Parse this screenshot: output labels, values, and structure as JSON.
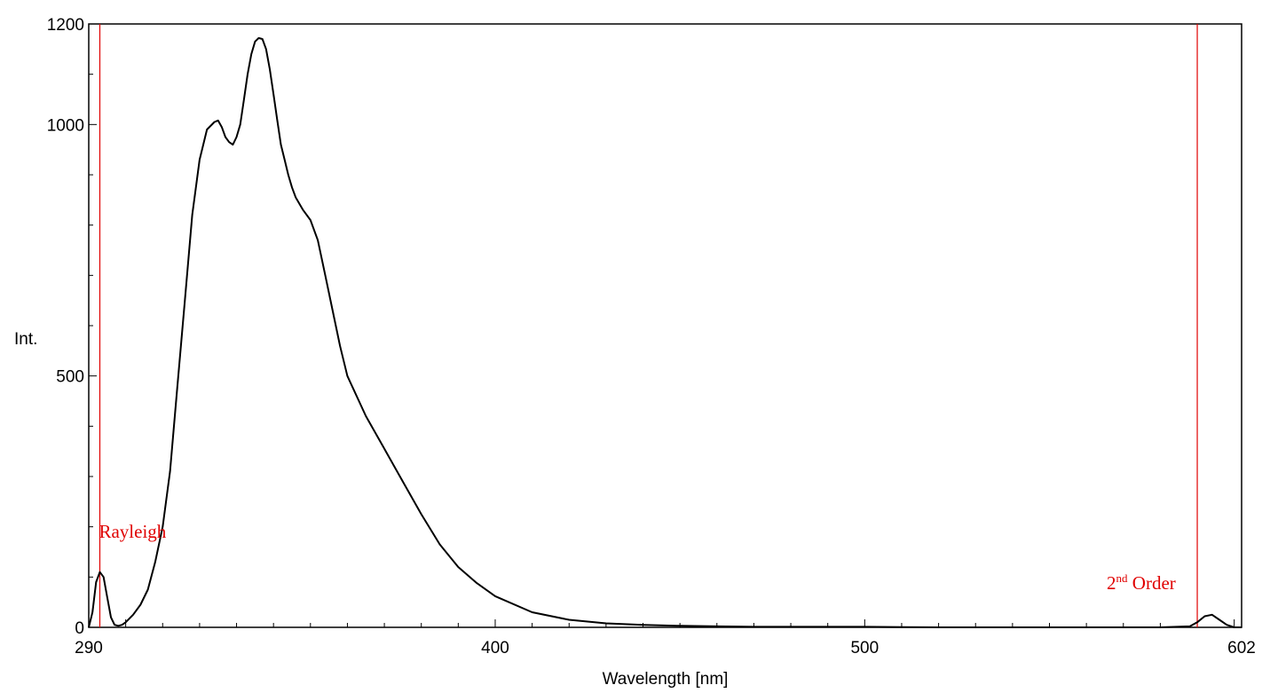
{
  "chart_data": {
    "type": "line",
    "title": "",
    "xlabel": "Wavelength [nm]",
    "ylabel": "Int.",
    "xlim": [
      290,
      602
    ],
    "ylim": [
      0,
      1200
    ],
    "x_ticks": [
      290,
      400,
      500,
      602
    ],
    "y_ticks": [
      0,
      500,
      1000,
      1200
    ],
    "grid": false,
    "legend": "none",
    "colors": {
      "curve": "#000000",
      "markers": "#e00000"
    },
    "series": [
      {
        "x": [
          290,
          291,
          292,
          293,
          294,
          295,
          296,
          297,
          298,
          299,
          300,
          302,
          304,
          306,
          308,
          310,
          312,
          314,
          316,
          318,
          320,
          322,
          324,
          325,
          326,
          327,
          328,
          329,
          330,
          331,
          332,
          333,
          334,
          335,
          336,
          337,
          338,
          339,
          340,
          341,
          342,
          343,
          344,
          345,
          346,
          348,
          350,
          352,
          354,
          356,
          358,
          360,
          365,
          370,
          375,
          380,
          385,
          390,
          395,
          400,
          410,
          420,
          430,
          440,
          450,
          460,
          470,
          480,
          490,
          500,
          520,
          540,
          560,
          580,
          588,
          590,
          592,
          594,
          596,
          598,
          600,
          602
        ],
        "y": [
          0,
          30,
          90,
          110,
          100,
          60,
          20,
          5,
          3,
          5,
          10,
          25,
          45,
          75,
          130,
          200,
          310,
          480,
          650,
          820,
          930,
          990,
          1005,
          1008,
          995,
          975,
          965,
          960,
          975,
          1000,
          1050,
          1100,
          1140,
          1165,
          1172,
          1170,
          1150,
          1110,
          1060,
          1010,
          960,
          930,
          900,
          875,
          855,
          830,
          810,
          770,
          700,
          630,
          560,
          500,
          420,
          355,
          290,
          225,
          165,
          120,
          88,
          62,
          30,
          15,
          8,
          5,
          3,
          2,
          1,
          1,
          1,
          1,
          0,
          0,
          0,
          0,
          2,
          10,
          22,
          25,
          15,
          5,
          0,
          0
        ]
      }
    ],
    "annotations": [
      {
        "label_main": "Rayleigh",
        "label_sup": "",
        "x": 293
      },
      {
        "label_main": "2",
        "label_sup": "nd",
        "label_tail": " Order",
        "x": 590
      }
    ]
  }
}
